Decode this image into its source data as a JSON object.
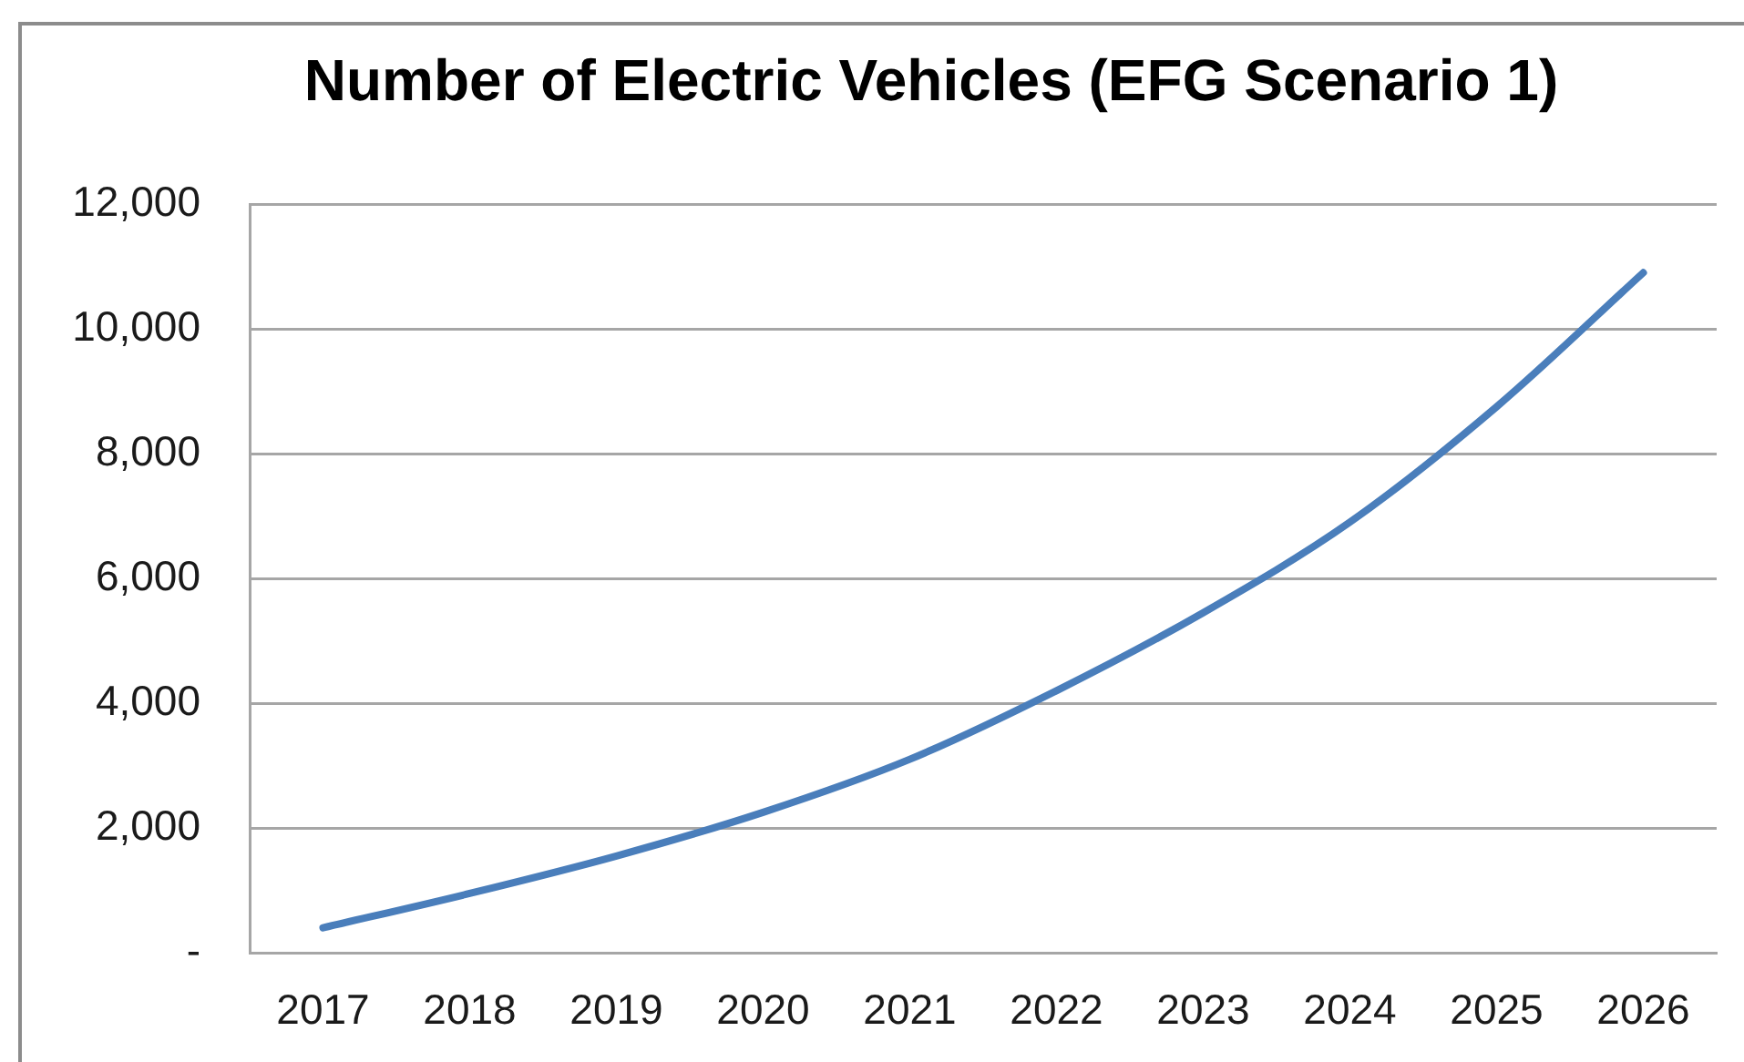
{
  "chart_data": {
    "type": "line",
    "title": "Number of Electric Vehicles (EFG Scenario 1)",
    "categories": [
      "2017",
      "2018",
      "2019",
      "2020",
      "2021",
      "2022",
      "2023",
      "2024",
      "2025",
      "2026"
    ],
    "values": [
      400,
      950,
      1550,
      2250,
      3100,
      4200,
      5450,
      6900,
      8750,
      10900
    ],
    "color": "#4a7ebb",
    "ylim": [
      0,
      12000
    ],
    "yticks": [
      {
        "value": 0,
        "label": "-"
      },
      {
        "value": 2000,
        "label": "2,000"
      },
      {
        "value": 4000,
        "label": "4,000"
      },
      {
        "value": 6000,
        "label": "6,000"
      },
      {
        "value": 8000,
        "label": "8,000"
      },
      {
        "value": 10000,
        "label": "10,000"
      },
      {
        "value": 12000,
        "label": "12,000"
      }
    ],
    "grid": "y",
    "legend": false,
    "marker": "none",
    "line_style": "solid"
  }
}
